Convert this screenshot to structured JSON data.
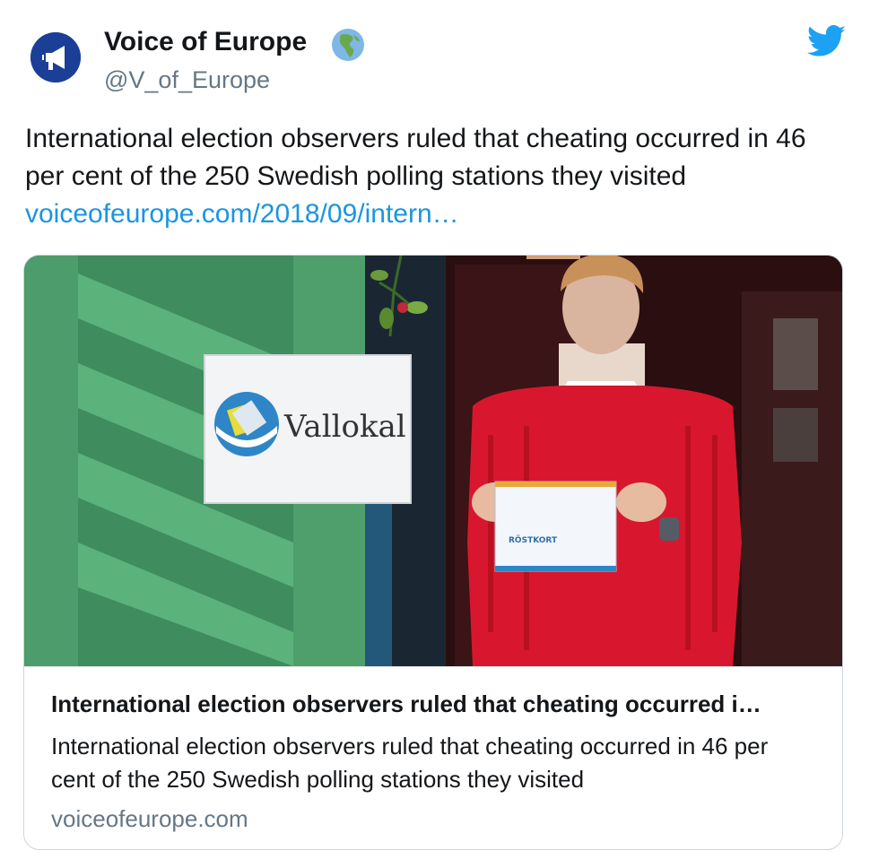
{
  "author": {
    "name": "Voice of Europe",
    "handle": "@V_of_Europe",
    "badge_icon": "globe-europe-africa-icon"
  },
  "platform_icon": "twitter-bird-icon",
  "tweet": {
    "text": "International election observers ruled that cheating occurred in 46 per cent of the 250 Swedish polling stations they visited",
    "link": "voiceofeurope.com/2018/09/intern…"
  },
  "card": {
    "image": {
      "sign_text": "Vallokal",
      "envelope_text": "RÖSTKORT"
    },
    "title": "International election observers ruled that cheating occurred i…",
    "description": "International election observers ruled that cheating occurred in 46 per cent of the 250 Swedish polling stations they visited",
    "domain": "voiceofeurope.com"
  },
  "colors": {
    "link": "#1b95e0",
    "twitter_blue": "#1da1f2",
    "secondary_text": "#657786",
    "card_border": "#ccd6dd",
    "avatar_bg": "#1b3f97"
  }
}
